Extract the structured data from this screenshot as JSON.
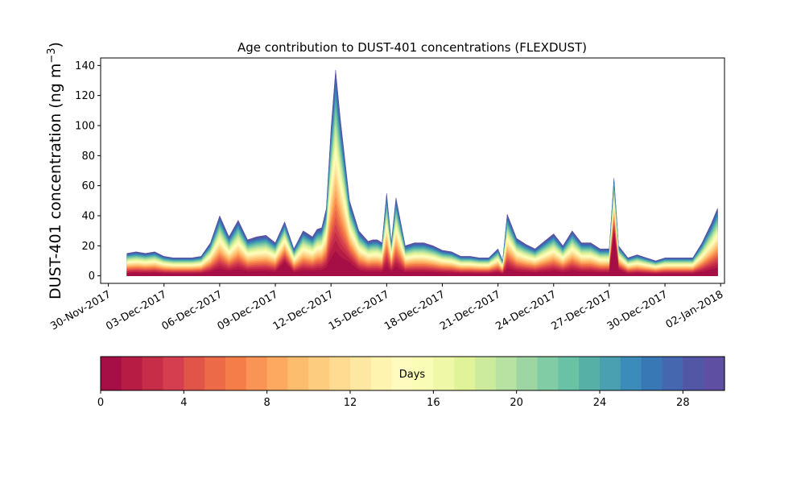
{
  "chart_data": {
    "type": "area",
    "subtype": "stacked-area-by-age",
    "title": "Age contribution to DUST-401 concentrations (FLEXDUST)",
    "xlabel": "",
    "ylabel": "DUST-401 concentration (ng m",
    "ylabel_unit_superscript": "−3",
    "ylabel_close": ")",
    "ylim": [
      -5,
      145
    ],
    "yticks": [
      0,
      20,
      40,
      60,
      80,
      100,
      120,
      140
    ],
    "xlim": [
      "2017-11-29 14:00",
      "2018-01-02 05:00"
    ],
    "xticks": [
      "30-Nov-2017",
      "03-Dec-2017",
      "06-Dec-2017",
      "09-Dec-2017",
      "12-Dec-2017",
      "15-Dec-2017",
      "18-Dec-2017",
      "21-Dec-2017",
      "24-Dec-2017",
      "27-Dec-2017",
      "30-Dec-2017",
      "02-Jan-2018"
    ],
    "xtick_dates": [
      "2017-11-30",
      "2017-12-03",
      "2017-12-06",
      "2017-12-09",
      "2017-12-12",
      "2017-12-15",
      "2017-12-18",
      "2017-12-21",
      "2017-12-24",
      "2017-12-27",
      "2017-12-30",
      "2018-01-02"
    ],
    "grid": false,
    "stack_layers": 30,
    "x": [
      "2017-12-01 00:00",
      "2017-12-01 12:00",
      "2017-12-02 00:00",
      "2017-12-02 12:00",
      "2017-12-03 00:00",
      "2017-12-03 12:00",
      "2017-12-04 00:00",
      "2017-12-04 12:00",
      "2017-12-05 00:00",
      "2017-12-05 12:00",
      "2017-12-06 00:00",
      "2017-12-06 12:00",
      "2017-12-07 00:00",
      "2017-12-07 12:00",
      "2017-12-08 00:00",
      "2017-12-08 12:00",
      "2017-12-09 00:00",
      "2017-12-09 12:00",
      "2017-12-10 00:00",
      "2017-12-10 12:00",
      "2017-12-11 00:00",
      "2017-12-11 06:00",
      "2017-12-11 12:00",
      "2017-12-11 18:00",
      "2017-12-12 00:00",
      "2017-12-12 06:00",
      "2017-12-12 12:00",
      "2017-12-13 00:00",
      "2017-12-13 12:00",
      "2017-12-14 00:00",
      "2017-12-14 06:00",
      "2017-12-14 12:00",
      "2017-12-14 18:00",
      "2017-12-15 00:00",
      "2017-12-15 06:00",
      "2017-12-15 12:00",
      "2017-12-16 00:00",
      "2017-12-16 12:00",
      "2017-12-17 00:00",
      "2017-12-17 12:00",
      "2017-12-18 00:00",
      "2017-12-18 12:00",
      "2017-12-19 00:00",
      "2017-12-19 12:00",
      "2017-12-20 00:00",
      "2017-12-20 12:00",
      "2017-12-21 00:00",
      "2017-12-21 06:00",
      "2017-12-21 12:00",
      "2017-12-22 00:00",
      "2017-12-22 12:00",
      "2017-12-23 00:00",
      "2017-12-23 12:00",
      "2017-12-24 00:00",
      "2017-12-24 12:00",
      "2017-12-25 00:00",
      "2017-12-25 12:00",
      "2017-12-26 00:00",
      "2017-12-26 12:00",
      "2017-12-27 00:00",
      "2017-12-27 06:00",
      "2017-12-27 12:00",
      "2017-12-28 00:00",
      "2017-12-28 12:00",
      "2017-12-29 00:00",
      "2017-12-29 12:00",
      "2017-12-30 00:00",
      "2017-12-30 12:00",
      "2017-12-31 00:00",
      "2017-12-31 12:00",
      "2018-01-01 00:00",
      "2018-01-01 12:00",
      "2018-01-01 20:00"
    ],
    "total": [
      15,
      16,
      15,
      16,
      13,
      12,
      12,
      12,
      13,
      22,
      40,
      26,
      37,
      24,
      26,
      27,
      22,
      36,
      18,
      30,
      26,
      31,
      32,
      45,
      98,
      137,
      105,
      50,
      30,
      23,
      24,
      24,
      22,
      55,
      22,
      52,
      20,
      22,
      22,
      20,
      17,
      16,
      13,
      13,
      12,
      12,
      18,
      10,
      41,
      25,
      21,
      18,
      23,
      28,
      20,
      30,
      22,
      22,
      18,
      18,
      65,
      20,
      12,
      14,
      12,
      10,
      12,
      12,
      12,
      12,
      22,
      35,
      45
    ],
    "fresh": [
      0,
      0,
      0,
      0,
      0,
      0,
      0,
      0,
      0,
      0,
      0,
      0,
      0,
      0,
      0,
      0,
      0,
      9,
      0,
      0,
      0,
      0,
      0,
      0,
      0,
      0,
      0,
      9,
      0,
      0,
      0,
      0,
      0,
      0,
      0,
      0,
      0,
      0,
      0,
      0,
      0,
      0,
      0,
      0,
      0,
      0,
      0,
      0,
      0,
      0,
      0,
      0,
      0,
      0,
      0,
      0,
      0,
      0,
      0,
      0,
      28,
      4,
      0,
      0,
      0,
      0,
      0,
      0,
      0,
      0,
      0,
      0,
      0
    ],
    "colorbar": {
      "label": "Days",
      "min": 0,
      "max": 30,
      "ticks": [
        0,
        4,
        8,
        12,
        16,
        20,
        24,
        28
      ],
      "colors": [
        "#a50f46",
        "#b61c44",
        "#c72d49",
        "#d53e4f",
        "#e15549",
        "#ed6a48",
        "#f47d4a",
        "#f99455",
        "#fdaa60",
        "#fdbd6f",
        "#fecc7e",
        "#fedb90",
        "#fee7a1",
        "#fff3b0",
        "#fffbbe",
        "#f8fcb4",
        "#eef8a6",
        "#e1f399",
        "#cceb9c",
        "#b8e2a1",
        "#9dd6a3",
        "#82cca5",
        "#6ac2a5",
        "#56b0a6",
        "#4a9fb0",
        "#3b8cbb",
        "#3878b5",
        "#4467b0",
        "#5257a5",
        "#5e4fa2"
      ]
    }
  }
}
